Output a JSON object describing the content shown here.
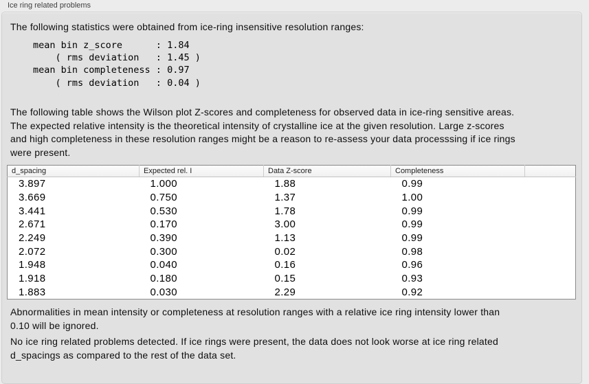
{
  "panel": {
    "group_title": "Ice ring related problems",
    "intro": "The following statistics were obtained from ice-ring insensitive resolution ranges:",
    "stats_text": "mean bin z_score      : 1.84\n    ( rms deviation   : 1.45 )\nmean bin completeness : 0.97\n    ( rms deviation   : 0.04 )",
    "stats": {
      "mean_bin_z_score": "1.84",
      "z_score_rms_deviation": "1.45",
      "mean_bin_completeness": "0.97",
      "completeness_rms_deviation": "0.04"
    },
    "table_caption": "The following table shows the Wilson plot Z-scores and completeness for observed data in ice-ring sensitive areas.\nThe expected relative intensity is the theoretical intensity of crystalline ice at the given resolution. Large z-scores\nand high completeness in these resolution ranges might be a reason to re-assess your data processsing if ice rings\nwere present.",
    "ignore_note": "Abnormalities in mean intensity or completeness at resolution ranges with a relative ice ring intensity lower than\n0.10 will be ignored.",
    "conclusion": "No ice ring related problems detected. If ice rings were present, the data does not look worse at ice ring related\nd_spacings as compared to the rest of the data set."
  },
  "table": {
    "columns": [
      "d_spacing",
      "Expected rel. I",
      "Data Z-score",
      "Completeness",
      ""
    ],
    "rows": [
      [
        "3.897",
        "1.000",
        "1.88",
        "0.99"
      ],
      [
        "3.669",
        "0.750",
        "1.37",
        "1.00"
      ],
      [
        "3.441",
        "0.530",
        "1.78",
        "0.99"
      ],
      [
        "2.671",
        "0.170",
        "3.00",
        "0.99"
      ],
      [
        "2.249",
        "0.390",
        "1.13",
        "0.99"
      ],
      [
        "2.072",
        "0.300",
        "0.02",
        "0.98"
      ],
      [
        "1.948",
        "0.040",
        "0.16",
        "0.96"
      ],
      [
        "1.918",
        "0.180",
        "0.15",
        "0.93"
      ],
      [
        "1.883",
        "0.030",
        "2.29",
        "0.92"
      ]
    ]
  },
  "colors": {
    "page_bg": "#ececec",
    "panel_bg": "#e1e1e1",
    "panel_border": "#cfcfcf",
    "table_border": "#8a8a8a",
    "table_header_bg": "#f4f4f4",
    "text": "#0d0d0d"
  }
}
